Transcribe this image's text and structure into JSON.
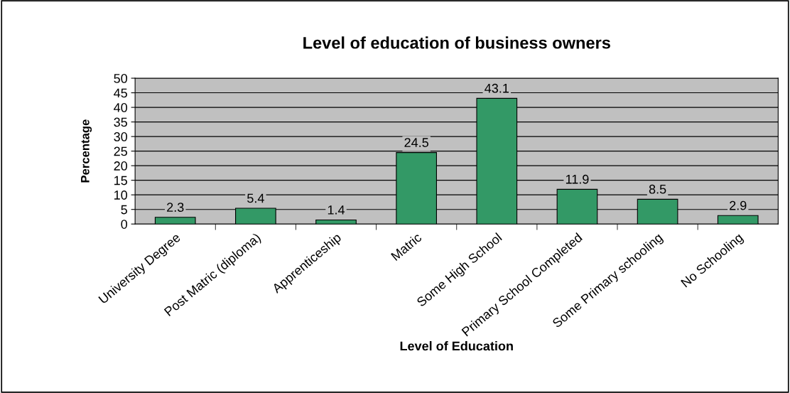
{
  "chart_data": {
    "type": "bar",
    "title": "Level of education of business owners",
    "xlabel": "Level of Education",
    "ylabel": "Percentage",
    "categories": [
      "University Degree",
      "Post Matric (diploma)",
      "Apprenticeship",
      "Matric",
      "Some High School",
      "Primary School Completed",
      "Some Primary schooling",
      "No Schooling"
    ],
    "values": [
      2.3,
      5.4,
      1.4,
      24.5,
      43.1,
      11.9,
      8.5,
      2.9
    ],
    "color": "#339966",
    "ylim": [
      0,
      50
    ],
    "yticks": [
      0,
      5,
      10,
      15,
      20,
      25,
      30,
      35,
      40,
      45,
      50
    ],
    "grid": "y",
    "data_labels": true
  }
}
